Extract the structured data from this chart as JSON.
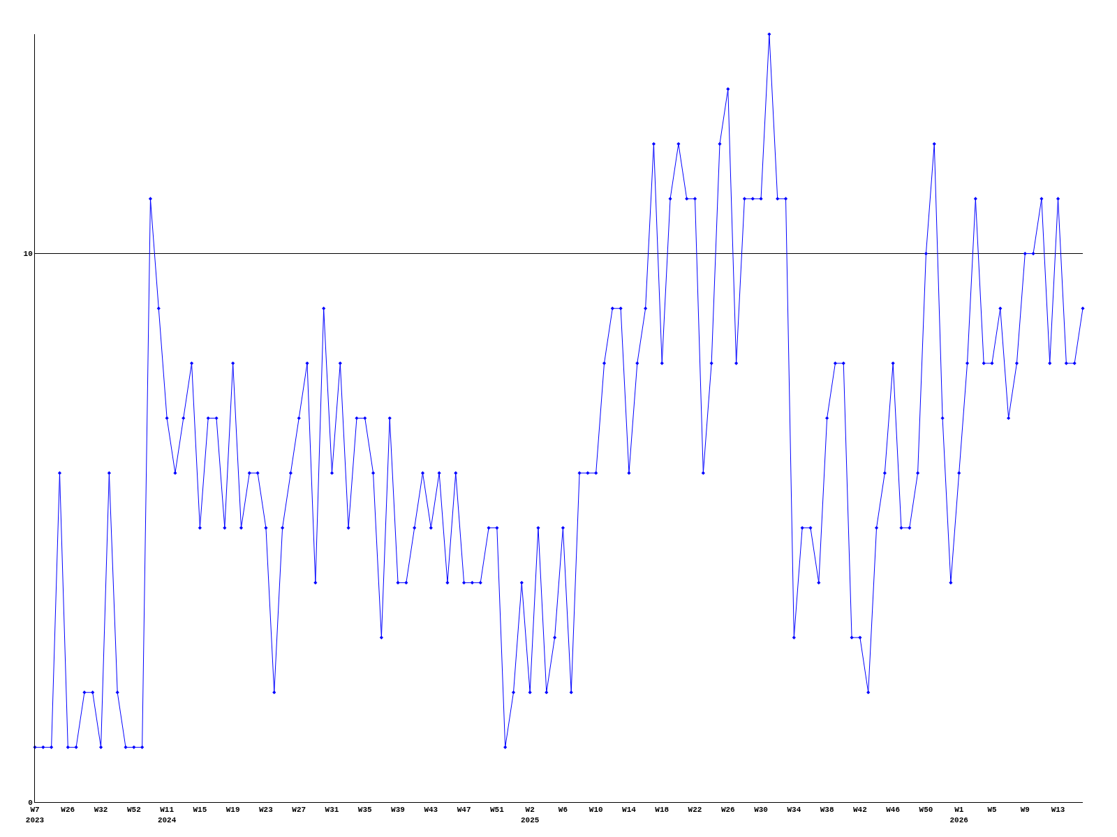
{
  "chart_data": {
    "type": "line",
    "categories": [
      "W7\n2023",
      null,
      null,
      null,
      "W26",
      null,
      null,
      null,
      "W32",
      null,
      null,
      null,
      "W52",
      null,
      null,
      null,
      "W11\n2024",
      null,
      null,
      null,
      "W15",
      null,
      null,
      null,
      "W19",
      null,
      null,
      null,
      "W23",
      null,
      null,
      null,
      "W27",
      null,
      null,
      null,
      "W31",
      null,
      null,
      null,
      "W35",
      null,
      null,
      null,
      "W39",
      null,
      null,
      null,
      "W43",
      null,
      null,
      null,
      "W47",
      null,
      null,
      null,
      "W51",
      null,
      null,
      null,
      "W2\n2025",
      null,
      null,
      null,
      "W6",
      null,
      null,
      null,
      "W10",
      null,
      null,
      null,
      "W14",
      null,
      null,
      null,
      "W18",
      null,
      null,
      null,
      "W22",
      null,
      null,
      null,
      "W26",
      null,
      null,
      null,
      "W30",
      null,
      null,
      null,
      "W34",
      null,
      null,
      null,
      "W38",
      null,
      null,
      null,
      "W42",
      null,
      null,
      null,
      "W46",
      null,
      null,
      null,
      "W50",
      null,
      null,
      null,
      "W1\n2026",
      null,
      null,
      null,
      "W5",
      null,
      null,
      null,
      "W9",
      null,
      null,
      null,
      "W13",
      null,
      null,
      null
    ],
    "series": [
      {
        "color": "#0000ff",
        "values": [
          1,
          1,
          1,
          6,
          1,
          1,
          2,
          2,
          1,
          6,
          2,
          1,
          1,
          1,
          11,
          9,
          7,
          6,
          7,
          8,
          5,
          7,
          7,
          5,
          8,
          5,
          6,
          6,
          5,
          2,
          5,
          6,
          7,
          8,
          4,
          9,
          6,
          8,
          5,
          7,
          7,
          6,
          3,
          7,
          4,
          4,
          5,
          6,
          5,
          6,
          4,
          6,
          4,
          4,
          4,
          5,
          5,
          1,
          2,
          4,
          2,
          5,
          2,
          3,
          5,
          2,
          6,
          6,
          6,
          8,
          9,
          9,
          6,
          8,
          9,
          12,
          8,
          11,
          12,
          11,
          11,
          6,
          8,
          12,
          13,
          8,
          11,
          11,
          11,
          14,
          11,
          11,
          3,
          5,
          5,
          4,
          7,
          8,
          8,
          3,
          3,
          2,
          5,
          6,
          8,
          5,
          5,
          6,
          10,
          12,
          7,
          4,
          6,
          8,
          11,
          8,
          8,
          9,
          7,
          8,
          10,
          10,
          11,
          8,
          11,
          8,
          8,
          9
        ]
      }
    ],
    "ylim": [
      0,
      14
    ],
    "yticks": [
      0,
      10
    ],
    "grid": "y",
    "legend": false,
    "marker": "diamond",
    "line_style": "solid"
  }
}
